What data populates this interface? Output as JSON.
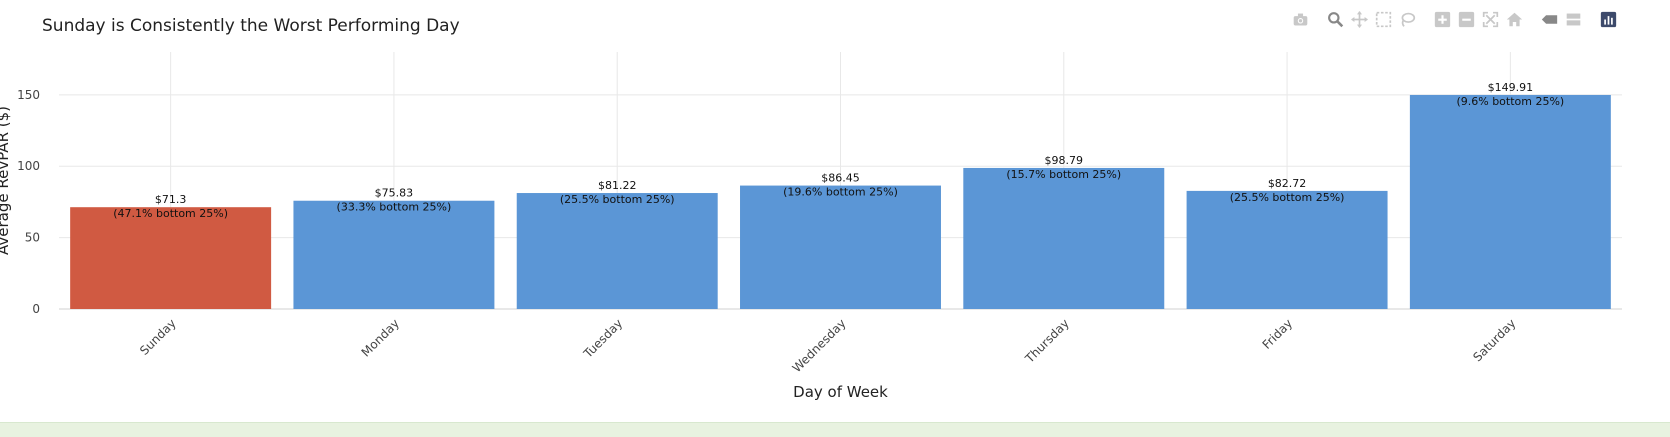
{
  "toolbar": {
    "buttons": [
      {
        "name": "camera-icon",
        "label": "Download plot as a png"
      },
      {
        "name": "zoom-icon",
        "label": "Zoom"
      },
      {
        "name": "pan-icon",
        "label": "Pan"
      },
      {
        "name": "box-select-icon",
        "label": "Box Select"
      },
      {
        "name": "lasso-select-icon",
        "label": "Lasso Select"
      },
      {
        "name": "zoom-in-icon",
        "label": "Zoom in"
      },
      {
        "name": "zoom-out-icon",
        "label": "Zoom out"
      },
      {
        "name": "autoscale-icon",
        "label": "Autoscale"
      },
      {
        "name": "reset-axes-icon",
        "label": "Reset axes"
      },
      {
        "name": "hover-closest-icon",
        "label": "Show closest data on hover"
      },
      {
        "name": "hover-compare-icon",
        "label": "Compare data on hover"
      },
      {
        "name": "plotly-logo-icon",
        "label": "Produced with Plotly"
      }
    ]
  },
  "colors": {
    "highlight": "#d05a42",
    "default": "#5b96d6",
    "grid": "#e8e8e8",
    "text": "#222222",
    "icon": "#c8c8c8"
  },
  "chart_data": {
    "type": "bar",
    "title": "Sunday is Consistently the Worst Performing Day",
    "xlabel": "Day of Week",
    "ylabel": "Average RevPAR ($)",
    "ylim": [
      0,
      180
    ],
    "yticks": [
      0,
      50,
      100,
      150
    ],
    "grid": true,
    "categories": [
      "Sunday",
      "Monday",
      "Tuesday",
      "Wednesday",
      "Thursday",
      "Friday",
      "Saturday"
    ],
    "values": [
      71.3,
      75.83,
      81.22,
      86.45,
      98.79,
      82.72,
      149.91
    ],
    "value_labels": [
      "$71.3",
      "$75.83",
      "$81.22",
      "$86.45",
      "$98.79",
      "$82.72",
      "$149.91"
    ],
    "sub_labels": [
      "(47.1% bottom 25%)",
      "(33.3% bottom 25%)",
      "(25.5% bottom 25%)",
      "(19.6% bottom 25%)",
      "(15.7% bottom 25%)",
      "(25.5% bottom 25%)",
      "(9.6% bottom 25%)"
    ],
    "highlight_index": 0
  }
}
